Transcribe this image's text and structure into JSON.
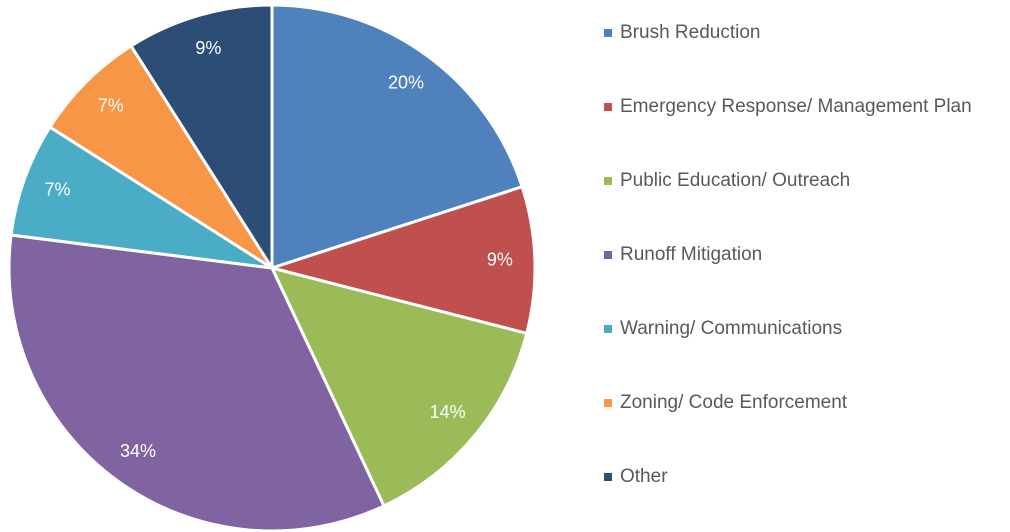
{
  "chart_data": {
    "type": "pie",
    "categories": [
      "Brush Reduction",
      "Emergency Response/ Management Plan",
      "Public Education/ Outreach",
      "Runoff Mitigation",
      "Warning/ Communications",
      "Zoning/ Code Enforcement",
      "Other"
    ],
    "values": [
      20,
      9,
      14,
      34,
      7,
      7,
      9
    ],
    "value_labels": [
      "20%",
      "9%",
      "14%",
      "34%",
      "7%",
      "7%",
      "9%"
    ],
    "colors": [
      "#4f81bd",
      "#c0504d",
      "#9bbb59",
      "#8064a2",
      "#4bacc6",
      "#f79646",
      "#2c4d75"
    ],
    "legend": "right"
  }
}
